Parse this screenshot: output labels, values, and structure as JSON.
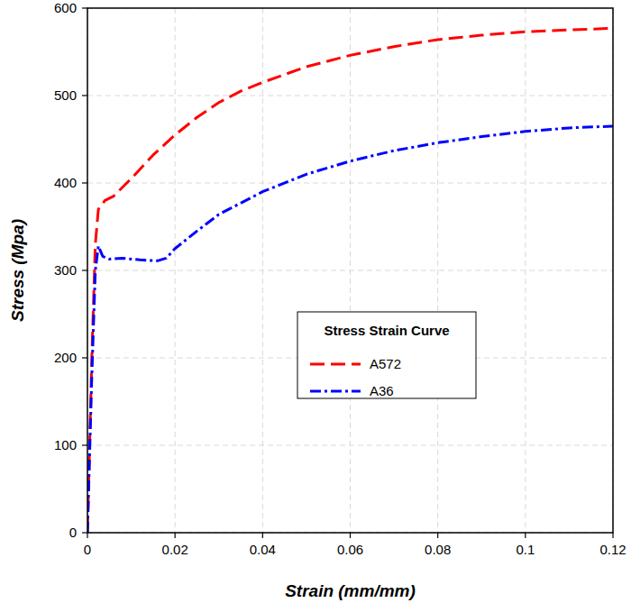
{
  "chart_data": {
    "type": "line",
    "x_label": "Strain (mm/mm)",
    "y_label": "Stress (Mpa)",
    "legend_title": "Stress Strain Curve",
    "xlim": [
      0,
      0.12
    ],
    "ylim": [
      0,
      600
    ],
    "xticks": [
      0,
      0.02,
      0.04,
      0.06,
      0.08,
      0.1,
      0.12
    ],
    "yticks": [
      0,
      100,
      200,
      300,
      400,
      500,
      600
    ],
    "grid": true,
    "legend": "center",
    "series": [
      {
        "name": "A572",
        "color": "#ff0000",
        "line_style": "dashed",
        "x": [
          0,
          0.001,
          0.0018,
          0.0025,
          0.004,
          0.006,
          0.01,
          0.015,
          0.02,
          0.025,
          0.03,
          0.035,
          0.04,
          0.05,
          0.06,
          0.07,
          0.08,
          0.09,
          0.1,
          0.11,
          0.12
        ],
        "values": [
          0,
          200,
          330,
          370,
          380,
          385,
          405,
          432,
          455,
          475,
          492,
          505,
          515,
          533,
          546,
          556,
          564,
          569,
          573,
          575,
          577
        ]
      },
      {
        "name": "A36",
        "color": "#0000ff",
        "line_style": "dashdot",
        "x": [
          0,
          0.001,
          0.0018,
          0.0025,
          0.0035,
          0.005,
          0.008,
          0.012,
          0.016,
          0.018,
          0.02,
          0.025,
          0.03,
          0.04,
          0.05,
          0.06,
          0.07,
          0.08,
          0.09,
          0.1,
          0.11,
          0.12
        ],
        "values": [
          0,
          180,
          300,
          328,
          316,
          313,
          314,
          312,
          311,
          314,
          325,
          345,
          364,
          390,
          410,
          425,
          437,
          446,
          453,
          459,
          463,
          465
        ]
      }
    ]
  }
}
